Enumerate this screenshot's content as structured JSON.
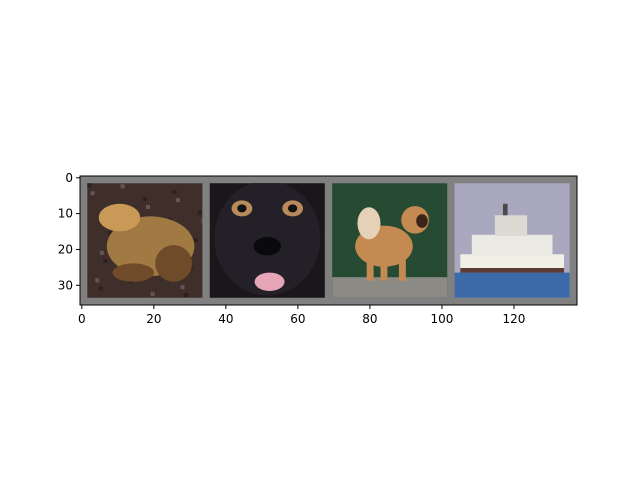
{
  "chart_data": {
    "type": "image-grid",
    "title": "",
    "xlabel": "",
    "ylabel": "",
    "xlim": [
      -0.5,
      137.5
    ],
    "ylim": [
      35.5,
      -0.5
    ],
    "x_ticks": [
      0,
      20,
      40,
      60,
      80,
      100,
      120
    ],
    "y_ticks": [
      0,
      10,
      20,
      30
    ],
    "grid": false,
    "background_color": "#808080",
    "tile_size": 32,
    "padding": 2,
    "tiles": [
      {
        "subject": "frog",
        "x_range": [
          2,
          33
        ],
        "y_range": [
          2,
          33
        ],
        "colors": {
          "bg": "#3f2f2b",
          "main": "#a17a43",
          "shade": "#6f4b2a",
          "light": "#c99a57"
        }
      },
      {
        "subject": "dog",
        "x_range": [
          36,
          67
        ],
        "y_range": [
          2,
          33
        ],
        "colors": {
          "bg": "#1a1619",
          "main": "#232027",
          "eye": "#b98a5a",
          "tongue": "#e6a6b8",
          "nose": "#0a0a0d"
        }
      },
      {
        "subject": "dog",
        "x_range": [
          70,
          101
        ],
        "y_range": [
          2,
          33
        ],
        "colors": {
          "bg": "#274a33",
          "floor": "#8c8a84",
          "main": "#c48a52",
          "light": "#e6d1b6",
          "dark": "#3c2418"
        }
      },
      {
        "subject": "ship",
        "x_range": [
          104,
          135
        ],
        "y_range": [
          2,
          33
        ],
        "colors": {
          "sky": "#a9a8bf",
          "hull": "#f2efe7",
          "stripe": "#5c3c33",
          "water": "#3c6aa8"
        }
      }
    ]
  }
}
